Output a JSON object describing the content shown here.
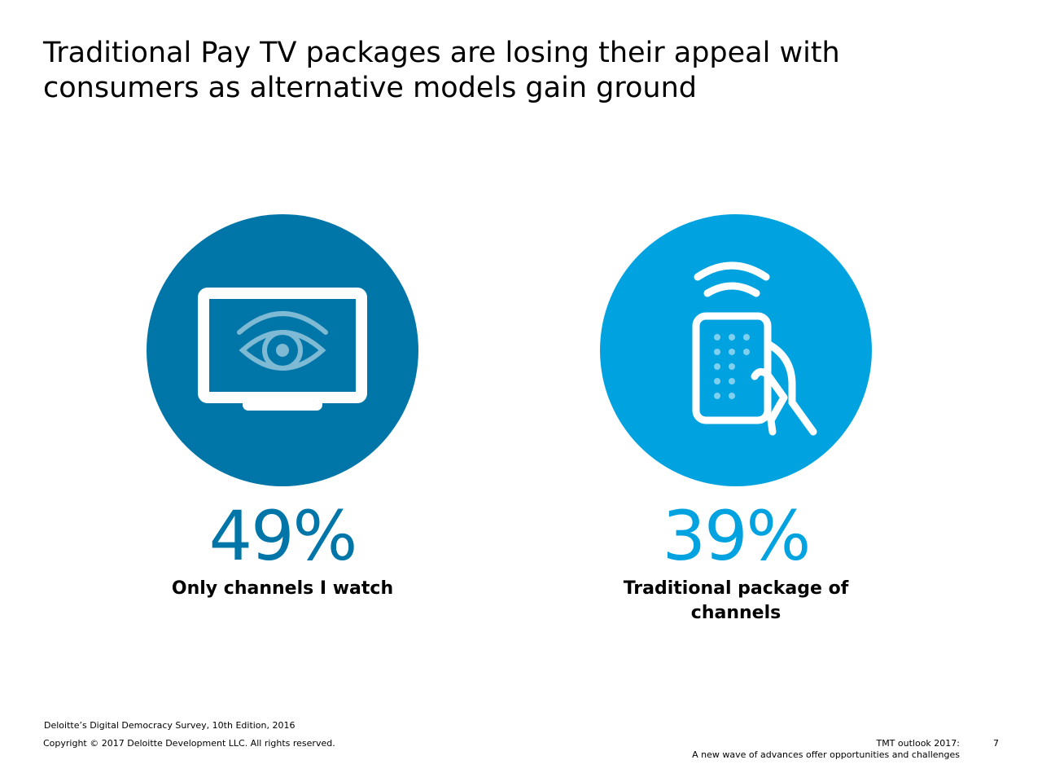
{
  "header": {
    "title_lines": [
      "Traditional Pay TV packages are losing their appeal with",
      "consumers as alternative models gain ground"
    ]
  },
  "stats": [
    {
      "value": "49%",
      "label": "Only channels I watch"
    },
    {
      "value": "39%",
      "label": "Traditional package of channels"
    }
  ],
  "footer": {
    "source": "Deloitte’s Digital Democracy Survey, 10th Edition, 2016",
    "copyright": "Copyright © 2017 Deloitte Development LLC. All rights reserved.",
    "publication_lines": [
      "TMT outlook 2017:",
      "A new wave of advances offer opportunities and challenges"
    ],
    "page_number": "7"
  }
}
